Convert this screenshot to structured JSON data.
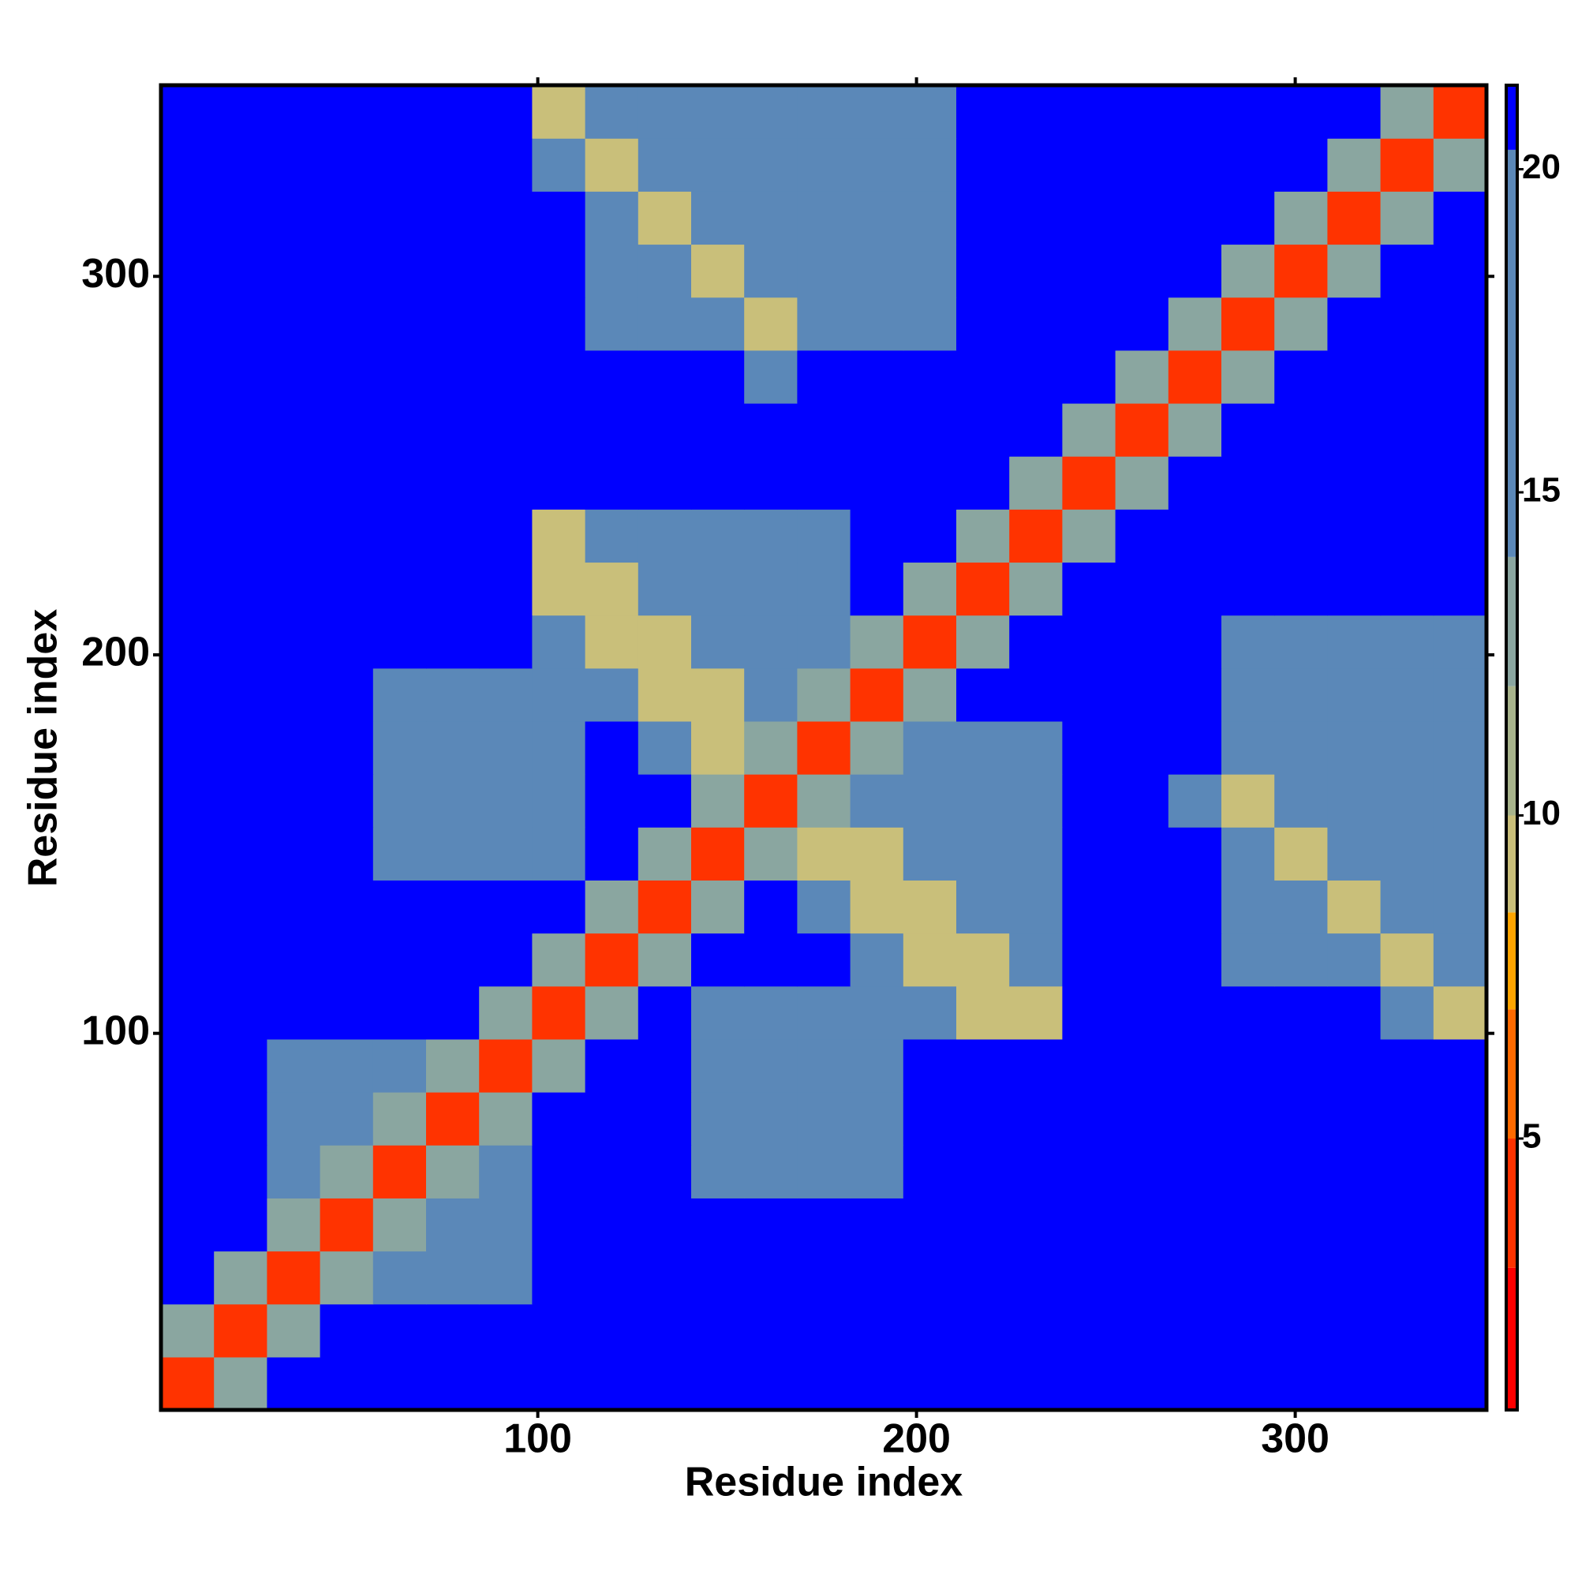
{
  "chart_data": {
    "type": "heatmap",
    "xlabel": "Residue index",
    "ylabel": "Residue index",
    "xlim": [
      0.5,
      350.5
    ],
    "ylim": [
      0.5,
      350.5
    ],
    "xticks": [
      100,
      200,
      300
    ],
    "yticks": [
      100,
      200,
      300
    ],
    "values": [
      [
        4,
        13,
        21,
        21,
        21,
        21,
        21,
        21,
        21,
        21,
        21,
        21,
        21,
        21,
        21,
        21,
        21,
        21,
        21,
        21,
        21,
        21,
        21,
        21,
        21
      ],
      [
        13,
        4,
        13,
        21,
        21,
        21,
        21,
        21,
        21,
        21,
        21,
        21,
        21,
        21,
        21,
        21,
        21,
        21,
        21,
        21,
        21,
        21,
        21,
        21,
        21
      ],
      [
        21,
        13,
        4,
        13,
        15,
        15,
        15,
        21,
        21,
        21,
        21,
        21,
        21,
        21,
        21,
        21,
        21,
        21,
        21,
        21,
        21,
        21,
        21,
        21,
        21
      ],
      [
        21,
        21,
        13,
        4,
        13,
        15,
        15,
        21,
        21,
        21,
        21,
        21,
        21,
        21,
        21,
        21,
        21,
        21,
        21,
        21,
        21,
        21,
        21,
        21,
        21
      ],
      [
        21,
        21,
        15,
        13,
        4,
        13,
        15,
        21,
        21,
        21,
        18,
        18,
        18,
        18,
        21,
        21,
        21,
        21,
        21,
        21,
        21,
        21,
        21,
        21,
        21
      ],
      [
        21,
        21,
        15,
        15,
        13,
        4,
        13,
        21,
        21,
        21,
        18,
        18,
        18,
        18,
        21,
        21,
        21,
        21,
        21,
        21,
        21,
        21,
        21,
        21,
        21
      ],
      [
        21,
        21,
        15,
        15,
        15,
        13,
        4,
        13,
        21,
        21,
        18,
        18,
        18,
        18,
        21,
        21,
        21,
        21,
        21,
        21,
        21,
        21,
        21,
        21,
        21
      ],
      [
        21,
        21,
        21,
        21,
        21,
        21,
        13,
        4,
        13,
        21,
        18,
        18,
        18,
        18,
        16,
        9,
        9,
        21,
        21,
        21,
        21,
        21,
        21,
        16,
        9
      ],
      [
        21,
        21,
        21,
        21,
        21,
        21,
        21,
        13,
        4,
        13,
        21,
        21,
        21,
        16,
        9,
        9,
        16,
        21,
        21,
        21,
        18,
        18,
        16,
        9,
        16
      ],
      [
        21,
        21,
        21,
        21,
        21,
        21,
        21,
        21,
        13,
        4,
        13,
        21,
        16,
        9,
        9,
        16,
        17,
        21,
        21,
        21,
        18,
        16,
        9,
        16,
        18
      ],
      [
        21,
        21,
        21,
        21,
        18,
        18,
        18,
        18,
        21,
        13,
        4,
        13,
        9,
        9,
        16,
        17,
        17,
        21,
        21,
        21,
        16,
        9,
        16,
        18,
        18
      ],
      [
        21,
        21,
        21,
        21,
        18,
        18,
        18,
        18,
        21,
        21,
        13,
        4,
        13,
        16,
        17,
        17,
        17,
        21,
        21,
        16,
        9,
        16,
        18,
        18,
        18
      ],
      [
        21,
        21,
        21,
        21,
        18,
        18,
        18,
        18,
        21,
        16,
        9,
        13,
        4,
        13,
        17,
        17,
        17,
        21,
        21,
        21,
        18,
        18,
        18,
        18,
        18
      ],
      [
        21,
        21,
        21,
        21,
        18,
        18,
        18,
        18,
        16,
        9,
        9,
        16,
        13,
        4,
        13,
        21,
        21,
        21,
        21,
        21,
        18,
        18,
        18,
        18,
        18
      ],
      [
        21,
        21,
        21,
        21,
        21,
        21,
        21,
        16,
        9,
        9,
        16,
        17,
        17,
        13,
        4,
        13,
        21,
        21,
        21,
        21,
        18,
        18,
        18,
        18,
        18
      ],
      [
        21,
        21,
        21,
        21,
        21,
        21,
        21,
        9,
        9,
        16,
        17,
        17,
        17,
        21,
        13,
        4,
        13,
        21,
        21,
        21,
        21,
        21,
        21,
        21,
        21
      ],
      [
        21,
        21,
        21,
        21,
        21,
        21,
        21,
        9,
        16,
        17,
        17,
        17,
        17,
        21,
        21,
        13,
        4,
        13,
        21,
        21,
        21,
        21,
        21,
        21,
        21
      ],
      [
        21,
        21,
        21,
        21,
        21,
        21,
        21,
        21,
        21,
        21,
        21,
        21,
        21,
        21,
        21,
        21,
        13,
        4,
        13,
        21,
        21,
        21,
        21,
        21,
        21
      ],
      [
        21,
        21,
        21,
        21,
        21,
        21,
        21,
        21,
        21,
        21,
        21,
        21,
        21,
        21,
        21,
        21,
        21,
        13,
        4,
        13,
        21,
        21,
        21,
        21,
        21
      ],
      [
        21,
        21,
        21,
        21,
        21,
        21,
        21,
        21,
        21,
        21,
        21,
        16,
        21,
        21,
        21,
        21,
        21,
        21,
        13,
        4,
        13,
        21,
        21,
        21,
        21
      ],
      [
        21,
        21,
        21,
        21,
        21,
        21,
        21,
        21,
        18,
        18,
        16,
        9,
        18,
        18,
        18,
        21,
        21,
        21,
        21,
        13,
        4,
        13,
        21,
        21,
        21
      ],
      [
        21,
        21,
        21,
        21,
        21,
        21,
        21,
        21,
        18,
        16,
        9,
        16,
        18,
        18,
        18,
        21,
        21,
        21,
        21,
        21,
        13,
        4,
        13,
        21,
        21
      ],
      [
        21,
        21,
        21,
        21,
        21,
        21,
        21,
        21,
        16,
        9,
        16,
        18,
        18,
        18,
        18,
        21,
        21,
        21,
        21,
        21,
        21,
        13,
        4,
        13,
        21
      ],
      [
        21,
        21,
        21,
        21,
        21,
        21,
        21,
        16,
        9,
        16,
        18,
        18,
        18,
        18,
        18,
        21,
        21,
        21,
        21,
        21,
        21,
        21,
        13,
        4,
        13
      ],
      [
        21,
        21,
        21,
        21,
        21,
        21,
        21,
        9,
        16,
        18,
        18,
        18,
        18,
        18,
        18,
        21,
        21,
        21,
        21,
        21,
        21,
        21,
        21,
        13,
        4
      ]
    ],
    "colorbar": {
      "lim": [
        0.8,
        21.3
      ],
      "ticks": [
        5,
        10,
        15,
        20
      ],
      "levels": [
        {
          "max": 3,
          "color": "#ff0000"
        },
        {
          "max": 5,
          "color": "#ff3300"
        },
        {
          "max": 7,
          "color": "#ff6a00"
        },
        {
          "max": 8.5,
          "color": "#ffa500"
        },
        {
          "max": 10,
          "color": "#c9bf7a"
        },
        {
          "max": 12,
          "color": "#a8b48c"
        },
        {
          "max": 14,
          "color": "#8aa6a0"
        },
        {
          "max": 20.3,
          "color": "#5b88b8"
        },
        {
          "max": 21.3,
          "color": "#0000ff"
        }
      ]
    }
  }
}
